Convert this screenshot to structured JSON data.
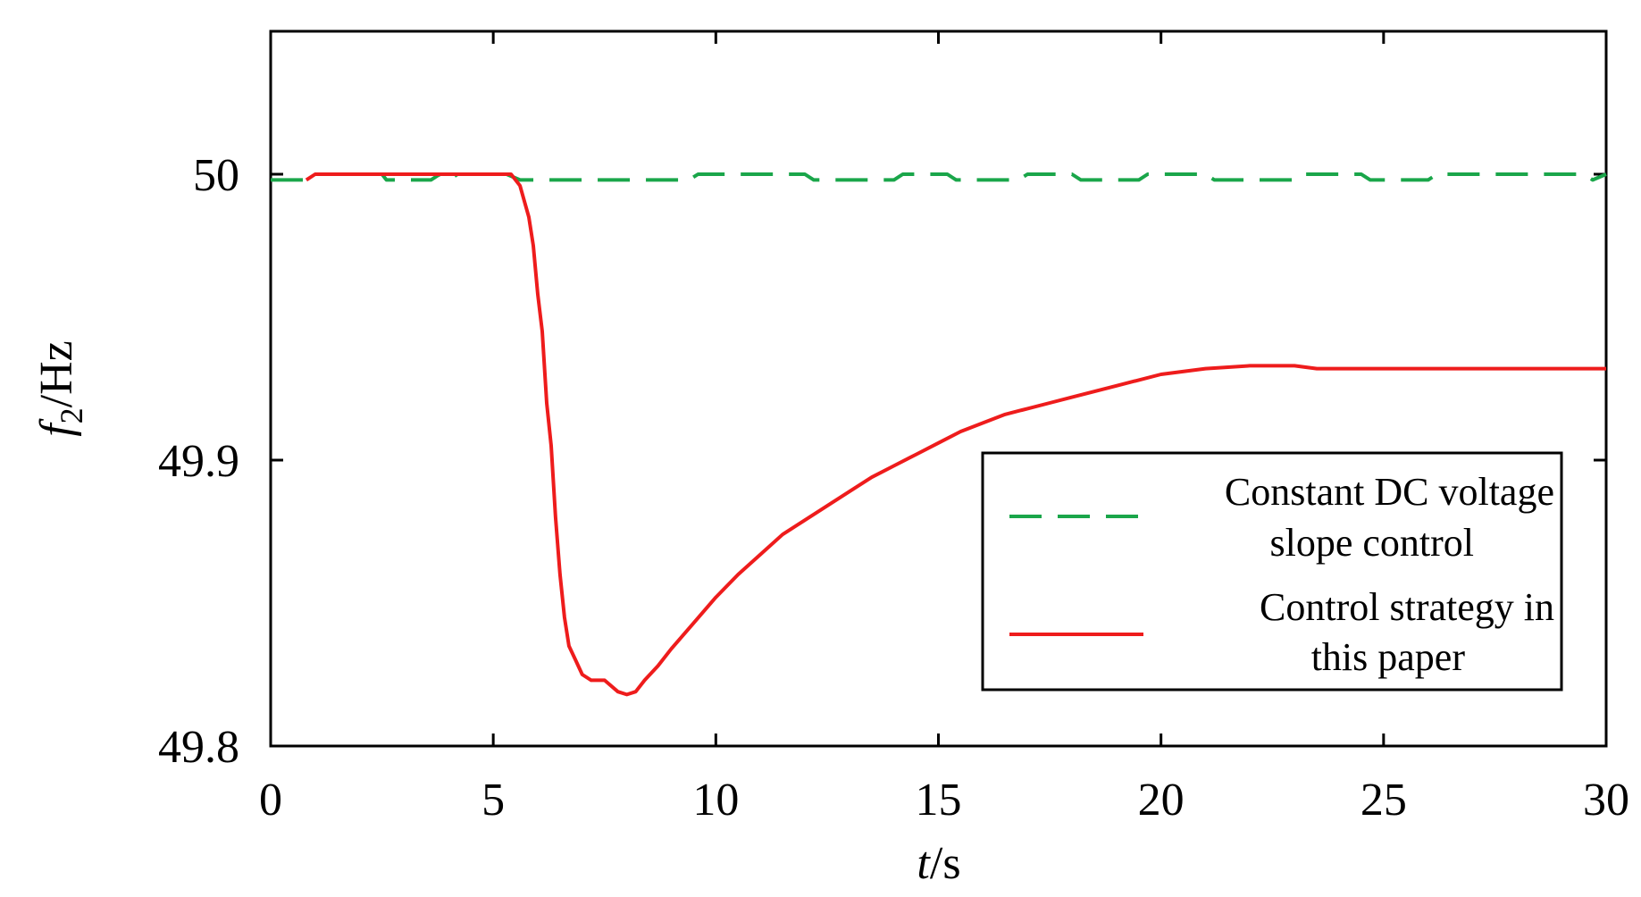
{
  "chart_data": {
    "type": "line",
    "xlabel": {
      "italic": "t",
      "rest": "/s"
    },
    "ylabel": {
      "italic": "f",
      "sub": "2",
      "rest": "/Hz"
    },
    "xlim": [
      0,
      30
    ],
    "ylim": [
      49.8,
      50.05
    ],
    "xticks": [
      "0",
      "5",
      "10",
      "15",
      "20",
      "25",
      "30"
    ],
    "yticks": [
      "49.8",
      "49.9",
      "50"
    ],
    "grid": false,
    "legend_position": "bottom-right",
    "series": [
      {
        "name": "Constant DC voltage slope control",
        "color": "#1aa64a",
        "style": "dashed",
        "points": [
          [
            0,
            49.998
          ],
          [
            0.8,
            49.998
          ],
          [
            1.0,
            50.0
          ],
          [
            1.2,
            50.0
          ],
          [
            2.5,
            50.0
          ],
          [
            2.6,
            49.998
          ],
          [
            3.6,
            49.998
          ],
          [
            3.8,
            50.0
          ],
          [
            4.0,
            49.998
          ],
          [
            4.2,
            50.0
          ],
          [
            5.3,
            50.0
          ],
          [
            5.6,
            49.998
          ],
          [
            9.4,
            49.998
          ],
          [
            9.6,
            50.0
          ],
          [
            12.0,
            50.0
          ],
          [
            12.2,
            49.998
          ],
          [
            14.0,
            49.998
          ],
          [
            14.2,
            50.0
          ],
          [
            15.2,
            50.0
          ],
          [
            15.4,
            49.998
          ],
          [
            16.8,
            49.998
          ],
          [
            17.0,
            50.0
          ],
          [
            18.0,
            50.0
          ],
          [
            18.2,
            49.998
          ],
          [
            19.5,
            49.998
          ],
          [
            19.7,
            50.0
          ],
          [
            21.0,
            50.0
          ],
          [
            21.2,
            49.998
          ],
          [
            23.0,
            49.998
          ],
          [
            23.2,
            50.0
          ],
          [
            24.5,
            50.0
          ],
          [
            24.7,
            49.998
          ],
          [
            26.0,
            49.998
          ],
          [
            26.2,
            50.0
          ],
          [
            29.5,
            50.0
          ],
          [
            29.7,
            49.998
          ],
          [
            30.0,
            50.0
          ]
        ]
      },
      {
        "name": "Control strategy in this paper",
        "color": "#ee1c1c",
        "style": "solid",
        "points": [
          [
            0.8,
            49.998
          ],
          [
            1.0,
            50.0
          ],
          [
            5.4,
            50.0
          ],
          [
            5.6,
            49.996
          ],
          [
            5.8,
            49.985
          ],
          [
            5.9,
            49.975
          ],
          [
            6.0,
            49.958
          ],
          [
            6.1,
            49.945
          ],
          [
            6.2,
            49.92
          ],
          [
            6.3,
            49.905
          ],
          [
            6.4,
            49.88
          ],
          [
            6.5,
            49.86
          ],
          [
            6.6,
            49.845
          ],
          [
            6.7,
            49.835
          ],
          [
            6.85,
            49.83
          ],
          [
            7.0,
            49.825
          ],
          [
            7.2,
            49.823
          ],
          [
            7.5,
            49.823
          ],
          [
            7.8,
            49.819
          ],
          [
            8.0,
            49.818
          ],
          [
            8.2,
            49.819
          ],
          [
            8.4,
            49.823
          ],
          [
            8.7,
            49.828
          ],
          [
            9.0,
            49.834
          ],
          [
            9.5,
            49.843
          ],
          [
            10.0,
            49.852
          ],
          [
            10.5,
            49.86
          ],
          [
            11.0,
            49.867
          ],
          [
            11.5,
            49.874
          ],
          [
            12.0,
            49.879
          ],
          [
            12.5,
            49.884
          ],
          [
            13.0,
            49.889
          ],
          [
            13.5,
            49.894
          ],
          [
            14.0,
            49.898
          ],
          [
            14.5,
            49.902
          ],
          [
            15.0,
            49.906
          ],
          [
            15.5,
            49.91
          ],
          [
            16.0,
            49.913
          ],
          [
            16.5,
            49.916
          ],
          [
            17.0,
            49.918
          ],
          [
            17.5,
            49.92
          ],
          [
            18.0,
            49.922
          ],
          [
            18.5,
            49.924
          ],
          [
            19.0,
            49.926
          ],
          [
            19.5,
            49.928
          ],
          [
            20.0,
            49.93
          ],
          [
            21.0,
            49.932
          ],
          [
            22.0,
            49.933
          ],
          [
            23.0,
            49.933
          ],
          [
            23.5,
            49.932
          ],
          [
            25.0,
            49.932
          ],
          [
            26.0,
            49.932
          ],
          [
            27.0,
            49.932
          ],
          [
            28.0,
            49.932
          ],
          [
            29.0,
            49.932
          ],
          [
            30.0,
            49.932
          ]
        ]
      }
    ],
    "legend": {
      "entries": [
        {
          "line1": "Constant DC voltage",
          "line2": "slope control"
        },
        {
          "line1": "Control strategy in",
          "line2": "this paper"
        }
      ]
    }
  }
}
